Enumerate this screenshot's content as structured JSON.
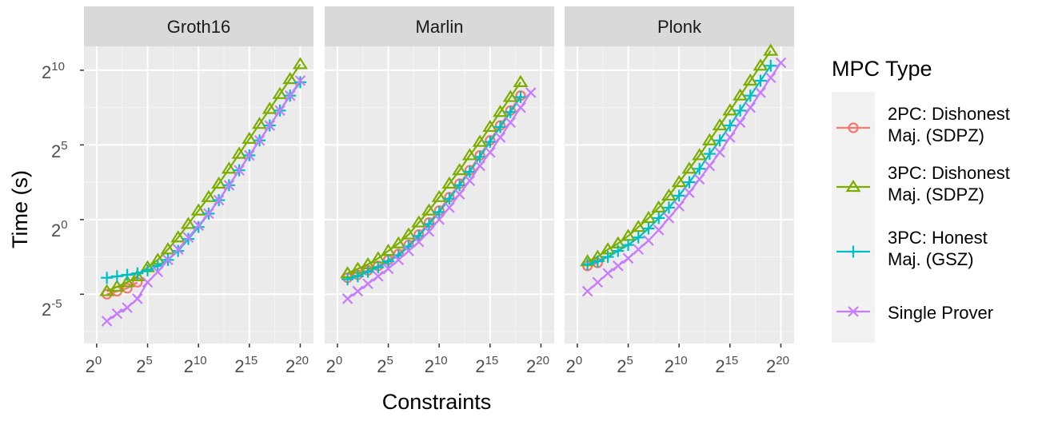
{
  "chart_data": {
    "type": "line",
    "facets": [
      "Groth16",
      "Marlin",
      "Plonk"
    ],
    "xlabel": "Constraints",
    "ylabel": "Time (s)",
    "x_scale": "log2",
    "y_scale": "log2",
    "x_ticks": [
      0,
      5,
      10,
      15,
      20
    ],
    "y_ticks": [
      -5,
      0,
      5,
      10
    ],
    "x_range_log2": [
      -1.25,
      21.3
    ],
    "y_range_log2": [
      -8.3,
      11.6
    ],
    "tick_base": "2",
    "legend": {
      "title": "MPC Type",
      "position": "right",
      "entries": [
        {
          "key": "2pc",
          "line1": "2PC: Dishonest",
          "line2": "Maj. (SDPZ)",
          "color": "#F8766D",
          "shape": "circle"
        },
        {
          "key": "3pcd",
          "line1": "3PC: Dishonest",
          "line2": "Maj. (SDPZ)",
          "color": "#7CAE00",
          "shape": "triangle"
        },
        {
          "key": "3pch",
          "line1": "3PC: Honest",
          "line2": "Maj. (GSZ)",
          "color": "#00BFC4",
          "shape": "plus"
        },
        {
          "key": "single",
          "line1": "Single Prover",
          "line2": "",
          "color": "#C77CFF",
          "shape": "cross"
        }
      ]
    },
    "panels": [
      {
        "facet": "Groth16",
        "series": [
          {
            "key": "2pc",
            "x_log2": [
              1,
              2,
              3,
              4
            ],
            "y_log2": [
              -5.0,
              -4.8,
              -4.6,
              -4.2
            ]
          },
          {
            "key": "3pcd",
            "x_log2": [
              1,
              2,
              3,
              4,
              5,
              6,
              7,
              8,
              9,
              10,
              11,
              12,
              13,
              14,
              15,
              16,
              17,
              18,
              19,
              20
            ],
            "y_log2": [
              -4.8,
              -4.5,
              -4.2,
              -3.8,
              -3.2,
              -2.7,
              -2.0,
              -1.2,
              -0.3,
              0.6,
              1.5,
              2.4,
              3.4,
              4.4,
              5.4,
              6.4,
              7.4,
              8.4,
              9.4,
              10.4
            ]
          },
          {
            "key": "3pch",
            "x_log2": [
              1,
              2,
              3,
              4,
              5,
              6,
              7,
              8,
              9,
              10,
              11,
              12,
              13,
              14,
              15,
              16,
              17,
              18,
              19,
              20
            ],
            "y_log2": [
              -3.9,
              -3.8,
              -3.7,
              -3.6,
              -3.4,
              -3.1,
              -2.7,
              -2.1,
              -1.3,
              -0.5,
              0.4,
              1.3,
              2.3,
              3.3,
              4.3,
              5.3,
              6.3,
              7.3,
              8.3,
              9.2
            ]
          },
          {
            "key": "single",
            "x_log2": [
              1,
              2,
              3,
              4,
              5,
              6,
              7,
              8,
              9,
              10,
              11,
              12,
              13,
              14,
              15,
              16,
              17,
              18,
              19,
              20
            ],
            "y_log2": [
              -6.8,
              -6.3,
              -5.9,
              -5.3,
              -4.2,
              -3.5,
              -2.7,
              -2.0,
              -1.2,
              -0.4,
              0.4,
              1.3,
              2.3,
              3.3,
              4.3,
              5.3,
              6.3,
              7.3,
              8.3,
              9.3
            ]
          }
        ]
      },
      {
        "facet": "Marlin",
        "series": [
          {
            "key": "2pc",
            "x_log2": [
              1,
              2,
              3,
              4,
              5,
              6,
              7,
              8,
              9,
              10,
              11,
              12,
              13,
              14,
              15,
              16,
              17,
              18
            ],
            "y_log2": [
              -3.9,
              -3.7,
              -3.4,
              -3.1,
              -2.7,
              -2.3,
              -1.7,
              -1.0,
              -0.2,
              0.6,
              1.5,
              2.4,
              3.3,
              4.3,
              5.3,
              6.3,
              7.3,
              8.3
            ]
          },
          {
            "key": "3pcd",
            "x_log2": [
              1,
              2,
              3,
              4,
              5,
              6,
              7,
              8,
              9,
              10,
              11,
              12,
              13,
              14,
              15,
              16,
              17,
              18
            ],
            "y_log2": [
              -3.6,
              -3.3,
              -3.0,
              -2.6,
              -2.1,
              -1.6,
              -1.0,
              -0.2,
              0.6,
              1.5,
              2.4,
              3.3,
              4.3,
              5.2,
              6.2,
              7.2,
              8.2,
              9.2
            ]
          },
          {
            "key": "3pch",
            "x_log2": [
              1,
              2,
              3,
              4,
              5,
              6,
              7,
              8,
              9,
              10,
              11,
              12,
              13,
              14,
              15,
              16,
              17,
              18
            ],
            "y_log2": [
              -4.0,
              -3.8,
              -3.5,
              -3.2,
              -2.8,
              -2.4,
              -1.8,
              -1.1,
              -0.3,
              0.5,
              1.4,
              2.3,
              3.2,
              4.2,
              5.2,
              6.2,
              7.2,
              8.2
            ]
          },
          {
            "key": "single",
            "x_log2": [
              1,
              2,
              3,
              4,
              5,
              6,
              7,
              8,
              9,
              10,
              11,
              12,
              13,
              14,
              15,
              16,
              17,
              18,
              19
            ],
            "y_log2": [
              -5.3,
              -4.8,
              -4.3,
              -3.8,
              -3.3,
              -2.7,
              -2.1,
              -1.5,
              -0.8,
              0.0,
              0.8,
              1.7,
              2.6,
              3.6,
              4.5,
              5.5,
              6.5,
              7.5,
              8.5
            ]
          }
        ]
      },
      {
        "facet": "Plonk",
        "series": [
          {
            "key": "2pc",
            "x_log2": [
              1,
              2
            ],
            "y_log2": [
              -3.1,
              -2.9
            ]
          },
          {
            "key": "3pcd",
            "x_log2": [
              1,
              2,
              3,
              4,
              5,
              6,
              7,
              8,
              9,
              10,
              11,
              12,
              13,
              14,
              15,
              16,
              17,
              18,
              19
            ],
            "y_log2": [
              -2.8,
              -2.5,
              -2.0,
              -1.6,
              -1.1,
              -0.5,
              0.1,
              0.8,
              1.6,
              2.5,
              3.4,
              4.3,
              5.3,
              6.3,
              7.3,
              8.3,
              9.3,
              10.3,
              11.3
            ]
          },
          {
            "key": "3pch",
            "x_log2": [
              1,
              2,
              3,
              4,
              5,
              6,
              7,
              8,
              9,
              10,
              11,
              12,
              13,
              14,
              15,
              16,
              17,
              18,
              19
            ],
            "y_log2": [
              -3.0,
              -2.8,
              -2.5,
              -2.1,
              -1.7,
              -1.2,
              -0.6,
              0.1,
              0.8,
              1.6,
              2.5,
              3.4,
              4.4,
              5.3,
              6.3,
              7.3,
              8.3,
              9.3,
              10.3
            ]
          },
          {
            "key": "single",
            "x_log2": [
              1,
              2,
              3,
              4,
              5,
              6,
              7,
              8,
              9,
              10,
              11,
              12,
              13,
              14,
              15,
              16,
              17,
              18,
              19,
              20
            ],
            "y_log2": [
              -4.8,
              -4.2,
              -3.6,
              -3.1,
              -2.6,
              -2.0,
              -1.4,
              -0.7,
              0.1,
              0.9,
              1.8,
              2.7,
              3.6,
              4.5,
              5.5,
              6.5,
              7.5,
              8.5,
              9.5,
              10.5
            ]
          }
        ]
      }
    ]
  }
}
